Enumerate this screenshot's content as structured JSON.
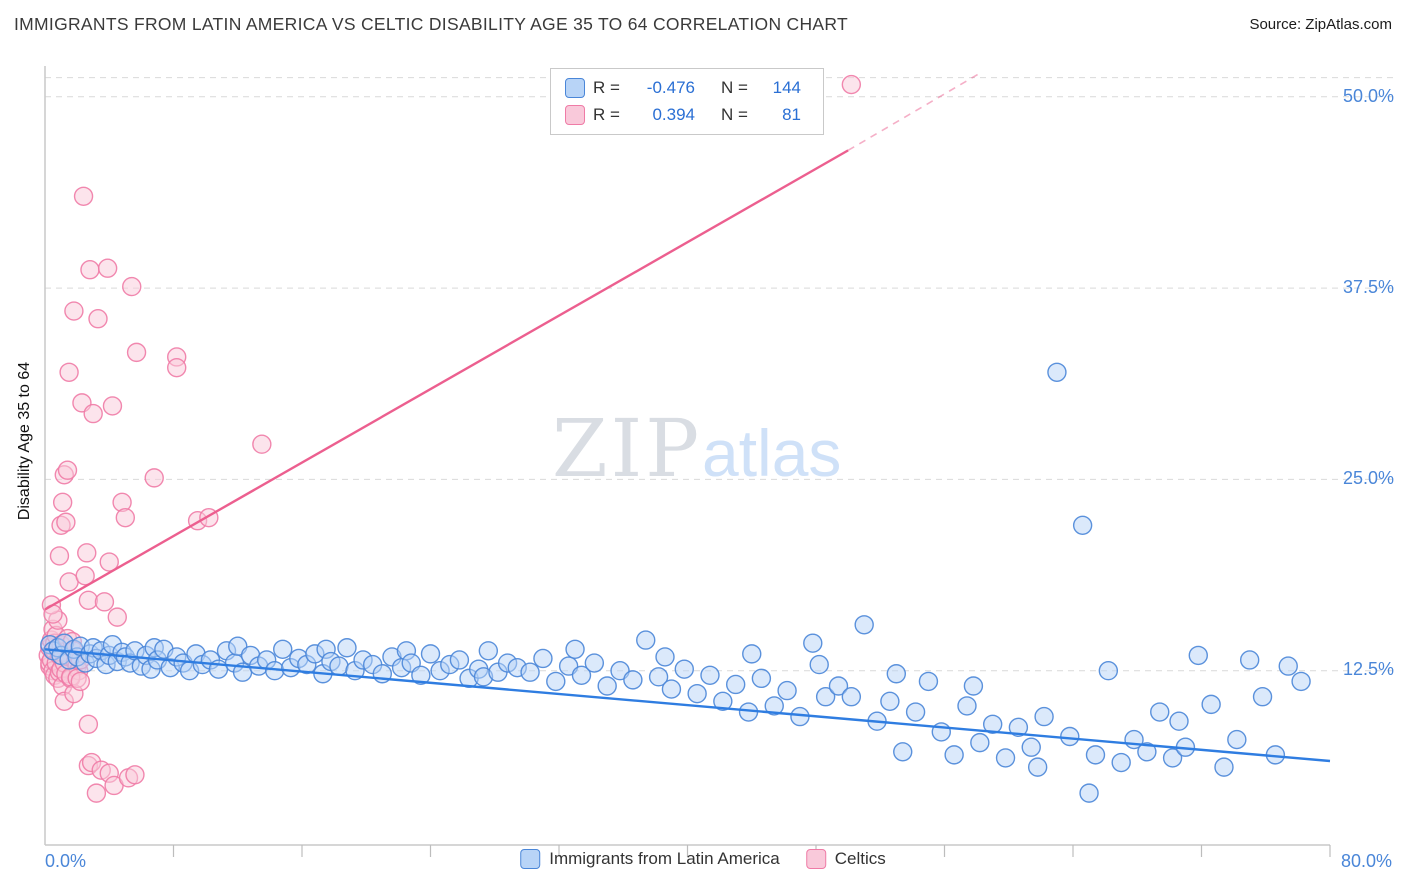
{
  "header": {
    "title": "IMMIGRANTS FROM LATIN AMERICA VS CELTIC DISABILITY AGE 35 TO 64 CORRELATION CHART",
    "source": "Source: ZipAtlas.com"
  },
  "watermark": {
    "zip": "ZIP",
    "atlas": "atlas"
  },
  "legend_box": {
    "rows": [
      {
        "r_label": "R =",
        "r_value": "-0.476",
        "n_label": "N =",
        "n_value": "144"
      },
      {
        "r_label": "R =",
        "r_value": "0.394",
        "n_label": "N =",
        "n_value": "81"
      }
    ]
  },
  "colors": {
    "axis_label_blue": "#4a86d8",
    "value_blue": "#2a6fd4",
    "gridline": "#d9d9d9",
    "axis_line": "#c9c9c9"
  },
  "chart_data": {
    "type": "scatter",
    "title": "IMMIGRANTS FROM LATIN AMERICA VS CELTIC DISABILITY AGE 35 TO 64 CORRELATION CHART",
    "ylabel": "Disability Age 35 to 64",
    "xlabel_left": "0.0%",
    "xlabel_right": "80.0%",
    "xlim": [
      0,
      80
    ],
    "ylim": [
      0,
      51.25
    ],
    "grid": true,
    "legend_position": "top-center and bottom-center",
    "xtick_step": 8,
    "yticks": [
      {
        "value": 50,
        "label": "50.0%"
      },
      {
        "value": 37.5,
        "label": "37.5%"
      },
      {
        "value": 25,
        "label": "25.0%"
      },
      {
        "value": 12.5,
        "label": "12.5%"
      }
    ],
    "series": [
      {
        "id": "latin-america",
        "name": "Immigrants from Latin America",
        "R": -0.476,
        "N": 144,
        "fill": "#b8d4f7",
        "stroke": "#4a86d8",
        "trend": {
          "color": "#2f7de1",
          "from": [
            0,
            13.9
          ],
          "to": [
            80,
            6.6
          ]
        },
        "points": [
          [
            0.3,
            14.2
          ],
          [
            0.5,
            13.8
          ],
          [
            0.8,
            14.0
          ],
          [
            1.0,
            13.5
          ],
          [
            1.2,
            14.3
          ],
          [
            1.5,
            13.2
          ],
          [
            1.8,
            13.9
          ],
          [
            2.0,
            13.4
          ],
          [
            2.2,
            14.1
          ],
          [
            2.5,
            13.0
          ],
          [
            2.8,
            13.6
          ],
          [
            3.0,
            14.0
          ],
          [
            3.2,
            13.3
          ],
          [
            3.5,
            13.8
          ],
          [
            3.8,
            12.9
          ],
          [
            4.0,
            13.5
          ],
          [
            4.2,
            14.2
          ],
          [
            4.5,
            13.1
          ],
          [
            4.8,
            13.7
          ],
          [
            5.0,
            13.4
          ],
          [
            5.3,
            13.0
          ],
          [
            5.6,
            13.8
          ],
          [
            6.0,
            12.8
          ],
          [
            6.3,
            13.5
          ],
          [
            6.6,
            12.6
          ],
          [
            6.8,
            14.0
          ],
          [
            7.0,
            13.2
          ],
          [
            7.4,
            13.9
          ],
          [
            7.8,
            12.7
          ],
          [
            8.2,
            13.4
          ],
          [
            8.6,
            13.0
          ],
          [
            9.0,
            12.5
          ],
          [
            9.4,
            13.6
          ],
          [
            9.8,
            12.9
          ],
          [
            10.3,
            13.2
          ],
          [
            10.8,
            12.6
          ],
          [
            11.3,
            13.8
          ],
          [
            11.8,
            13.0
          ],
          [
            12.0,
            14.1
          ],
          [
            12.3,
            12.4
          ],
          [
            12.8,
            13.5
          ],
          [
            13.3,
            12.8
          ],
          [
            13.8,
            13.2
          ],
          [
            14.3,
            12.5
          ],
          [
            14.8,
            13.9
          ],
          [
            15.3,
            12.7
          ],
          [
            15.8,
            13.3
          ],
          [
            16.3,
            12.9
          ],
          [
            16.8,
            13.6
          ],
          [
            17.3,
            12.3
          ],
          [
            17.5,
            13.9
          ],
          [
            17.8,
            13.1
          ],
          [
            18.3,
            12.8
          ],
          [
            18.8,
            14.0
          ],
          [
            19.3,
            12.5
          ],
          [
            19.8,
            13.2
          ],
          [
            20.4,
            12.9
          ],
          [
            21.0,
            12.3
          ],
          [
            21.6,
            13.4
          ],
          [
            22.2,
            12.7
          ],
          [
            22.5,
            13.8
          ],
          [
            22.8,
            13.0
          ],
          [
            23.4,
            12.2
          ],
          [
            24.0,
            13.6
          ],
          [
            24.6,
            12.5
          ],
          [
            25.2,
            12.9
          ],
          [
            25.8,
            13.2
          ],
          [
            26.4,
            12.0
          ],
          [
            27.0,
            12.6
          ],
          [
            27.3,
            12.1
          ],
          [
            27.6,
            13.8
          ],
          [
            28.2,
            12.4
          ],
          [
            28.8,
            13.0
          ],
          [
            29.4,
            12.7
          ],
          [
            30.2,
            12.4
          ],
          [
            31.0,
            13.3
          ],
          [
            31.8,
            11.8
          ],
          [
            32.6,
            12.8
          ],
          [
            33.0,
            13.9
          ],
          [
            33.4,
            12.2
          ],
          [
            34.2,
            13.0
          ],
          [
            35.0,
            11.5
          ],
          [
            35.8,
            12.5
          ],
          [
            36.6,
            11.9
          ],
          [
            37.4,
            14.5
          ],
          [
            38.2,
            12.1
          ],
          [
            38.6,
            13.4
          ],
          [
            39.0,
            11.3
          ],
          [
            39.8,
            12.6
          ],
          [
            40.6,
            11.0
          ],
          [
            41.4,
            12.2
          ],
          [
            42.2,
            10.5
          ],
          [
            43.0,
            11.6
          ],
          [
            43.8,
            9.8
          ],
          [
            44.0,
            13.6
          ],
          [
            44.6,
            12.0
          ],
          [
            45.4,
            10.2
          ],
          [
            46.2,
            11.2
          ],
          [
            47.0,
            9.5
          ],
          [
            47.8,
            14.3
          ],
          [
            48.2,
            12.9
          ],
          [
            48.6,
            10.8
          ],
          [
            49.4,
            11.5
          ],
          [
            50.2,
            10.8
          ],
          [
            51.0,
            15.5
          ],
          [
            51.8,
            9.2
          ],
          [
            52.6,
            10.5
          ],
          [
            53.0,
            12.3
          ],
          [
            53.4,
            7.2
          ],
          [
            54.2,
            9.8
          ],
          [
            55.0,
            11.8
          ],
          [
            55.8,
            8.5
          ],
          [
            56.6,
            7.0
          ],
          [
            57.4,
            10.2
          ],
          [
            57.8,
            11.5
          ],
          [
            58.2,
            7.8
          ],
          [
            59.0,
            9.0
          ],
          [
            59.8,
            6.8
          ],
          [
            60.6,
            8.8
          ],
          [
            61.4,
            7.5
          ],
          [
            61.8,
            6.2
          ],
          [
            62.2,
            9.5
          ],
          [
            63.0,
            32.0
          ],
          [
            63.8,
            8.2
          ],
          [
            64.6,
            22.0
          ],
          [
            65.0,
            4.5
          ],
          [
            65.4,
            7.0
          ],
          [
            66.2,
            12.5
          ],
          [
            67.0,
            6.5
          ],
          [
            67.8,
            8.0
          ],
          [
            68.6,
            7.2
          ],
          [
            69.4,
            9.8
          ],
          [
            70.2,
            6.8
          ],
          [
            70.6,
            9.2
          ],
          [
            71.0,
            7.5
          ],
          [
            71.8,
            13.5
          ],
          [
            72.6,
            10.3
          ],
          [
            73.4,
            6.2
          ],
          [
            74.2,
            8.0
          ],
          [
            75.0,
            13.2
          ],
          [
            75.8,
            10.8
          ],
          [
            76.6,
            7.0
          ],
          [
            77.4,
            12.8
          ],
          [
            78.2,
            11.8
          ]
        ]
      },
      {
        "id": "celtics",
        "name": "Celtics",
        "R": 0.394,
        "N": 81,
        "fill": "#f9c9da",
        "stroke": "#ef7ba6",
        "trend": {
          "color": "#ec5f8f",
          "from": [
            0,
            16.5
          ],
          "to": [
            50,
            46.5
          ],
          "dash_ext": {
            "from": [
              50,
              46.5
            ],
            "to": [
              58.3,
              51.6
            ]
          }
        },
        "points": [
          [
            0.2,
            13.5
          ],
          [
            0.3,
            14.0
          ],
          [
            0.3,
            12.8
          ],
          [
            0.3,
            13.0
          ],
          [
            0.4,
            13.2
          ],
          [
            0.4,
            14.5
          ],
          [
            0.5,
            12.5
          ],
          [
            0.5,
            15.2
          ],
          [
            0.6,
            13.8
          ],
          [
            0.6,
            12.2
          ],
          [
            0.6,
            14.3
          ],
          [
            0.7,
            14.8
          ],
          [
            0.7,
            13.0
          ],
          [
            0.8,
            12.0
          ],
          [
            0.8,
            15.8
          ],
          [
            0.9,
            13.5
          ],
          [
            0.9,
            12.4
          ],
          [
            1.0,
            12.6
          ],
          [
            1.0,
            14.2
          ],
          [
            1.1,
            11.5
          ],
          [
            1.1,
            13.7
          ],
          [
            1.2,
            13.0
          ],
          [
            1.3,
            12.3
          ],
          [
            1.4,
            14.6
          ],
          [
            1.5,
            13.4
          ],
          [
            1.6,
            12.0
          ],
          [
            1.7,
            14.4
          ],
          [
            1.8,
            13.8
          ],
          [
            1.9,
            13.1
          ],
          [
            2.0,
            12.8
          ],
          [
            2.1,
            12.5
          ],
          [
            2.2,
            13.2
          ],
          [
            0.4,
            16.8
          ],
          [
            0.5,
            16.2
          ],
          [
            0.9,
            20.0
          ],
          [
            1.0,
            22.0
          ],
          [
            1.1,
            23.5
          ],
          [
            1.2,
            25.3
          ],
          [
            1.3,
            22.2
          ],
          [
            1.4,
            25.6
          ],
          [
            1.5,
            18.3
          ],
          [
            1.5,
            32.0
          ],
          [
            1.8,
            36.0
          ],
          [
            2.3,
            30.0
          ],
          [
            2.4,
            43.5
          ],
          [
            2.5,
            18.7
          ],
          [
            2.6,
            20.2
          ],
          [
            2.7,
            17.1
          ],
          [
            2.8,
            38.7
          ],
          [
            3.0,
            29.3
          ],
          [
            3.3,
            35.5
          ],
          [
            3.7,
            17.0
          ],
          [
            3.9,
            38.8
          ],
          [
            4.0,
            19.6
          ],
          [
            4.2,
            29.8
          ],
          [
            4.5,
            16.0
          ],
          [
            4.8,
            23.5
          ],
          [
            5.0,
            22.5
          ],
          [
            5.4,
            37.6
          ],
          [
            5.7,
            33.3
          ],
          [
            6.8,
            25.1
          ],
          [
            8.2,
            33.0
          ],
          [
            8.2,
            32.3
          ],
          [
            9.5,
            22.3
          ],
          [
            10.2,
            22.5
          ],
          [
            13.5,
            27.3
          ],
          [
            1.2,
            10.5
          ],
          [
            1.6,
            12.1
          ],
          [
            1.8,
            11.0
          ],
          [
            2.0,
            12.0
          ],
          [
            2.2,
            11.8
          ],
          [
            2.7,
            9.0
          ],
          [
            2.7,
            6.3
          ],
          [
            2.9,
            6.5
          ],
          [
            3.2,
            4.5
          ],
          [
            3.5,
            6.0
          ],
          [
            4.0,
            5.8
          ],
          [
            4.3,
            5.0
          ],
          [
            5.2,
            5.5
          ],
          [
            5.6,
            5.7
          ],
          [
            50.2,
            50.8
          ]
        ]
      }
    ]
  }
}
